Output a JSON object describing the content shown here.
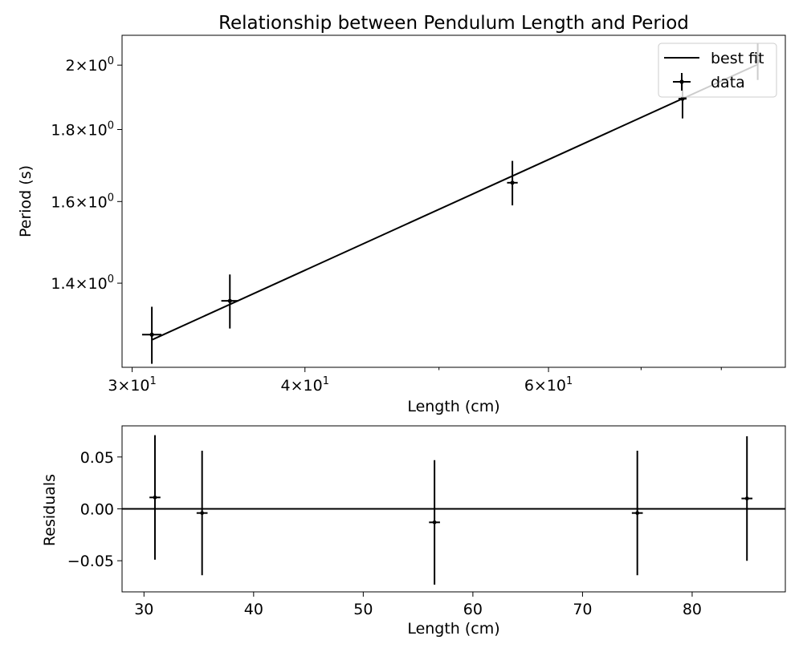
{
  "chart_data": [
    {
      "type": "scatter",
      "title": "Relationship between Pendulum Length and Period",
      "xlabel": "Length (cm)",
      "ylabel": "Period (s)",
      "xscale": "log",
      "yscale": "log",
      "xlim": [
        29.5,
        89
      ],
      "ylim": [
        1.22,
        2.1
      ],
      "x_ticks": [
        {
          "value": 30,
          "base": "3",
          "exp": "1"
        },
        {
          "value": 40,
          "base": "4",
          "exp": "1"
        },
        {
          "value": 60,
          "base": "6",
          "exp": "1"
        }
      ],
      "x_minor_ticks": [
        50,
        70,
        80
      ],
      "y_ticks": [
        {
          "value": 1.4,
          "base": "1.4",
          "exp": "0"
        },
        {
          "value": 1.6,
          "base": "1.6",
          "exp": "0"
        },
        {
          "value": 1.8,
          "base": "1.8",
          "exp": "0"
        },
        {
          "value": 2.0,
          "base": "2",
          "exp": "0"
        }
      ],
      "tick_times": "×",
      "tick_exp_prefix": "10",
      "legend": {
        "placement": "top-right",
        "entries": [
          "best fit",
          "data"
        ]
      },
      "series": [
        {
          "name": "data",
          "points": [
            {
              "x": 31.0,
              "y": 1.287,
              "xerr": 0.5,
              "yerr": 0.06
            },
            {
              "x": 35.3,
              "y": 1.36,
              "xerr": 0.5,
              "yerr": 0.06
            },
            {
              "x": 56.5,
              "y": 1.65,
              "xerr": 0.5,
              "yerr": 0.06
            },
            {
              "x": 75.0,
              "y": 1.893,
              "xerr": 0.5,
              "yerr": 0.06
            },
            {
              "x": 85.0,
              "y": 2.012,
              "xerr": 0.5,
              "yerr": 0.06
            }
          ]
        },
        {
          "name": "best fit",
          "points": [
            {
              "x": 31.0,
              "y": 1.276
            },
            {
              "x": 85.0,
              "y": 2.002
            }
          ]
        }
      ],
      "grid": false
    },
    {
      "type": "scatter",
      "xlabel": "Length (cm)",
      "ylabel": "Residuals",
      "xlim": [
        28,
        88.5
      ],
      "ylim": [
        -0.08,
        0.08
      ],
      "x_ticks": [
        "30",
        "40",
        "50",
        "60",
        "70",
        "80"
      ],
      "y_ticks": [
        "0.05",
        "0.00",
        "−0.05"
      ],
      "hline": 0,
      "points": [
        {
          "x": 31.0,
          "y": 0.011,
          "xerr": 0.5,
          "yerr": 0.06
        },
        {
          "x": 35.3,
          "y": -0.004,
          "xerr": 0.5,
          "yerr": 0.06
        },
        {
          "x": 56.5,
          "y": -0.013,
          "xerr": 0.5,
          "yerr": 0.06
        },
        {
          "x": 75.0,
          "y": -0.004,
          "xerr": 0.5,
          "yerr": 0.06
        },
        {
          "x": 85.0,
          "y": 0.01,
          "xerr": 0.5,
          "yerr": 0.06
        }
      ],
      "grid": false
    }
  ]
}
